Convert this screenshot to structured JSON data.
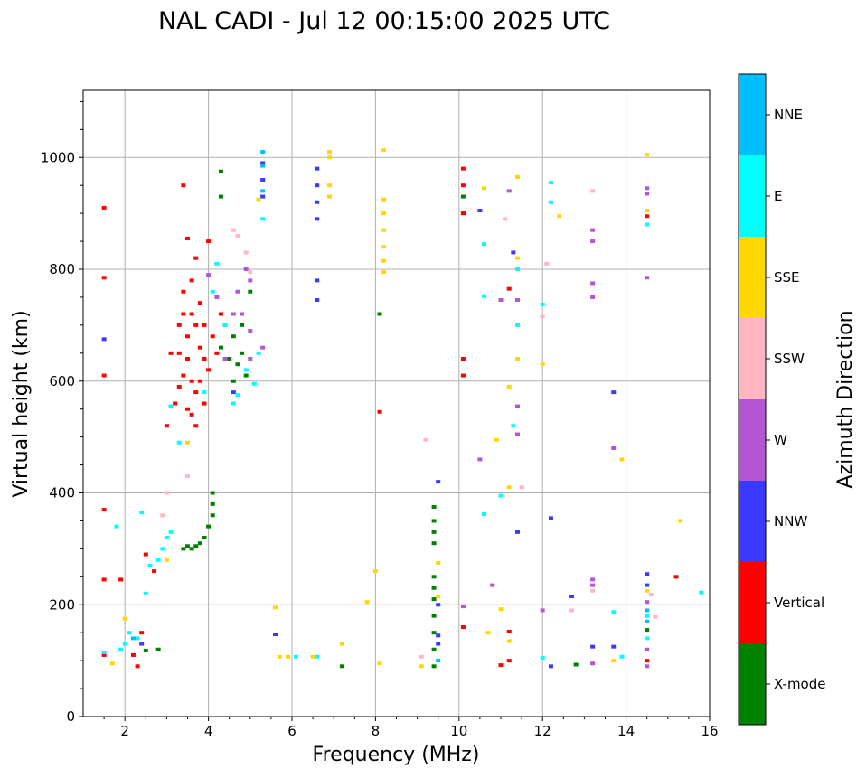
{
  "chart_data": {
    "type": "scatter",
    "title": "NAL CADI - Jul 12 00:15:00 2025 UTC",
    "xlabel": "Frequency (MHz)",
    "ylabel": "Virtual height (km)",
    "xlim": [
      1,
      16
    ],
    "ylim": [
      0,
      1120
    ],
    "xticks": [
      2,
      4,
      6,
      8,
      10,
      12,
      14,
      16
    ],
    "yticks": [
      0,
      200,
      400,
      600,
      800,
      1000
    ],
    "grid": true,
    "colorbar": {
      "label": "Azimuth Direction",
      "placement": "right",
      "categories": [
        {
          "name": "X-mode",
          "color": "#008000"
        },
        {
          "name": "Vertical",
          "color": "#ff0000"
        },
        {
          "name": "NNW",
          "color": "#3a3aff"
        },
        {
          "name": "W",
          "color": "#b355d4"
        },
        {
          "name": "SSW",
          "color": "#ffb6c1"
        },
        {
          "name": "SSE",
          "color": "#ffd700"
        },
        {
          "name": "E",
          "color": "#00ffff"
        },
        {
          "name": "NNE",
          "color": "#00bfff"
        }
      ]
    },
    "series": [
      {
        "name": "X-mode",
        "points": [
          [
            2.5,
            118
          ],
          [
            2.8,
            120
          ],
          [
            3.4,
            300
          ],
          [
            3.5,
            305
          ],
          [
            3.6,
            300
          ],
          [
            3.7,
            305
          ],
          [
            3.8,
            310
          ],
          [
            3.9,
            320
          ],
          [
            4.0,
            340
          ],
          [
            4.1,
            360
          ],
          [
            4.1,
            380
          ],
          [
            4.1,
            400
          ],
          [
            4.3,
            930
          ],
          [
            4.3,
            975
          ],
          [
            4.3,
            660
          ],
          [
            4.4,
            700
          ],
          [
            4.5,
            640
          ],
          [
            4.6,
            600
          ],
          [
            4.6,
            680
          ],
          [
            4.7,
            630
          ],
          [
            4.8,
            650
          ],
          [
            4.8,
            700
          ],
          [
            4.9,
            610
          ],
          [
            5.0,
            760
          ],
          [
            8.1,
            720
          ],
          [
            9.4,
            90
          ],
          [
            9.4,
            120
          ],
          [
            9.4,
            150
          ],
          [
            9.4,
            180
          ],
          [
            9.4,
            210
          ],
          [
            9.4,
            230
          ],
          [
            9.4,
            250
          ],
          [
            9.4,
            310
          ],
          [
            9.4,
            330
          ],
          [
            9.4,
            350
          ],
          [
            9.4,
            375
          ],
          [
            10.1,
            930
          ],
          [
            10.1,
            900
          ],
          [
            12.8,
            93
          ],
          [
            7.2,
            90
          ],
          [
            14.5,
            155
          ]
        ]
      },
      {
        "name": "Vertical",
        "points": [
          [
            1.5,
            910
          ],
          [
            1.5,
            785
          ],
          [
            1.5,
            610
          ],
          [
            1.5,
            370
          ],
          [
            1.5,
            245
          ],
          [
            1.5,
            110
          ],
          [
            1.9,
            245
          ],
          [
            2.2,
            110
          ],
          [
            2.3,
            90
          ],
          [
            2.4,
            150
          ],
          [
            2.5,
            290
          ],
          [
            2.7,
            260
          ],
          [
            3.0,
            520
          ],
          [
            3.1,
            650
          ],
          [
            3.2,
            560
          ],
          [
            3.3,
            590
          ],
          [
            3.3,
            650
          ],
          [
            3.3,
            700
          ],
          [
            3.4,
            610
          ],
          [
            3.4,
            720
          ],
          [
            3.4,
            760
          ],
          [
            3.4,
            950
          ],
          [
            3.5,
            550
          ],
          [
            3.5,
            640
          ],
          [
            3.5,
            680
          ],
          [
            3.5,
            855
          ],
          [
            3.6,
            540
          ],
          [
            3.6,
            600
          ],
          [
            3.6,
            720
          ],
          [
            3.6,
            780
          ],
          [
            3.7,
            520
          ],
          [
            3.7,
            580
          ],
          [
            3.7,
            700
          ],
          [
            3.7,
            820
          ],
          [
            3.8,
            600
          ],
          [
            3.8,
            660
          ],
          [
            3.8,
            740
          ],
          [
            3.9,
            560
          ],
          [
            3.9,
            640
          ],
          [
            3.9,
            700
          ],
          [
            4.0,
            620
          ],
          [
            4.0,
            850
          ],
          [
            4.1,
            680
          ],
          [
            4.2,
            650
          ],
          [
            4.3,
            720
          ],
          [
            8.1,
            545
          ],
          [
            10.1,
            980
          ],
          [
            10.1,
            950
          ],
          [
            10.1,
            900
          ],
          [
            10.1,
            640
          ],
          [
            10.1,
            610
          ],
          [
            10.1,
            160
          ],
          [
            11.0,
            92
          ],
          [
            11.2,
            152
          ],
          [
            11.2,
            100
          ],
          [
            11.2,
            765
          ],
          [
            14.5,
            895
          ],
          [
            14.5,
            100
          ],
          [
            15.2,
            250
          ]
        ]
      },
      {
        "name": "NNW",
        "points": [
          [
            1.5,
            675
          ],
          [
            2.4,
            130
          ],
          [
            4.6,
            580
          ],
          [
            5.3,
            930
          ],
          [
            5.3,
            960
          ],
          [
            5.3,
            990
          ],
          [
            5.6,
            147
          ],
          [
            6.6,
            890
          ],
          [
            6.6,
            920
          ],
          [
            6.6,
            950
          ],
          [
            6.6,
            980
          ],
          [
            6.6,
            745
          ],
          [
            6.6,
            780
          ],
          [
            9.5,
            420
          ],
          [
            9.5,
            200
          ],
          [
            9.5,
            145
          ],
          [
            9.5,
            130
          ],
          [
            10.5,
            905
          ],
          [
            11.4,
            330
          ],
          [
            11.3,
            830
          ],
          [
            12.2,
            90
          ],
          [
            12.2,
            355
          ],
          [
            12.7,
            215
          ],
          [
            13.2,
            125
          ],
          [
            13.7,
            125
          ],
          [
            13.7,
            580
          ],
          [
            14.5,
            255
          ],
          [
            14.5,
            235
          ]
        ]
      },
      {
        "name": "W",
        "points": [
          [
            4.0,
            790
          ],
          [
            4.2,
            750
          ],
          [
            4.4,
            640
          ],
          [
            4.6,
            720
          ],
          [
            4.7,
            760
          ],
          [
            4.8,
            720
          ],
          [
            4.9,
            800
          ],
          [
            5.0,
            780
          ],
          [
            5.0,
            690
          ],
          [
            5.0,
            640
          ],
          [
            5.3,
            660
          ],
          [
            10.5,
            460
          ],
          [
            10.8,
            235
          ],
          [
            10.1,
            197
          ],
          [
            11.0,
            745
          ],
          [
            11.2,
            940
          ],
          [
            11.4,
            505
          ],
          [
            11.4,
            555
          ],
          [
            11.4,
            745
          ],
          [
            12.0,
            190
          ],
          [
            13.2,
            870
          ],
          [
            13.2,
            850
          ],
          [
            13.2,
            775
          ],
          [
            13.2,
            750
          ],
          [
            13.2,
            235
          ],
          [
            13.2,
            245
          ],
          [
            13.2,
            95
          ],
          [
            13.7,
            480
          ],
          [
            14.5,
            945
          ],
          [
            14.5,
            935
          ],
          [
            14.5,
            785
          ],
          [
            14.5,
            205
          ],
          [
            14.5,
            120
          ],
          [
            14.5,
            90
          ]
        ]
      },
      {
        "name": "SSW",
        "points": [
          [
            2.9,
            360
          ],
          [
            3.0,
            400
          ],
          [
            3.5,
            430
          ],
          [
            4.6,
            870
          ],
          [
            4.7,
            860
          ],
          [
            4.9,
            830
          ],
          [
            5.0,
            795
          ],
          [
            9.2,
            495
          ],
          [
            9.1,
            107
          ],
          [
            11.1,
            890
          ],
          [
            11.5,
            410
          ],
          [
            12.0,
            715
          ],
          [
            12.1,
            810
          ],
          [
            12.7,
            190
          ],
          [
            13.2,
            940
          ],
          [
            13.2,
            225
          ],
          [
            14.6,
            218
          ],
          [
            14.7,
            178
          ]
        ]
      },
      {
        "name": "SSE",
        "points": [
          [
            1.7,
            95
          ],
          [
            2.0,
            175
          ],
          [
            3.0,
            280
          ],
          [
            3.5,
            490
          ],
          [
            5.2,
            925
          ],
          [
            5.6,
            195
          ],
          [
            5.7,
            107
          ],
          [
            5.9,
            107
          ],
          [
            6.5,
            107
          ],
          [
            6.9,
            1000
          ],
          [
            6.9,
            1010
          ],
          [
            6.9,
            950
          ],
          [
            6.9,
            930
          ],
          [
            7.2,
            130
          ],
          [
            7.8,
            205
          ],
          [
            8.0,
            260
          ],
          [
            8.1,
            95
          ],
          [
            8.2,
            1013
          ],
          [
            8.2,
            925
          ],
          [
            8.2,
            900
          ],
          [
            8.2,
            870
          ],
          [
            8.2,
            840
          ],
          [
            8.2,
            815
          ],
          [
            8.2,
            795
          ],
          [
            9.1,
            90
          ],
          [
            9.5,
            275
          ],
          [
            9.5,
            215
          ],
          [
            10.6,
            945
          ],
          [
            10.7,
            150
          ],
          [
            10.9,
            495
          ],
          [
            11.0,
            192
          ],
          [
            11.2,
            410
          ],
          [
            11.2,
            590
          ],
          [
            11.2,
            135
          ],
          [
            11.4,
            965
          ],
          [
            11.4,
            820
          ],
          [
            11.4,
            640
          ],
          [
            12.0,
            630
          ],
          [
            12.4,
            895
          ],
          [
            13.7,
            100
          ],
          [
            13.9,
            460
          ],
          [
            14.5,
            1005
          ],
          [
            14.5,
            905
          ],
          [
            14.5,
            225
          ],
          [
            14.5,
            170
          ],
          [
            15.3,
            350
          ]
        ]
      },
      {
        "name": "E",
        "points": [
          [
            1.5,
            115
          ],
          [
            1.8,
            340
          ],
          [
            1.9,
            120
          ],
          [
            2.0,
            130
          ],
          [
            2.1,
            150
          ],
          [
            2.3,
            140
          ],
          [
            2.4,
            365
          ],
          [
            2.5,
            220
          ],
          [
            2.6,
            270
          ],
          [
            2.8,
            280
          ],
          [
            2.9,
            300
          ],
          [
            3.0,
            320
          ],
          [
            3.1,
            330
          ],
          [
            3.1,
            555
          ],
          [
            3.3,
            490
          ],
          [
            3.9,
            580
          ],
          [
            4.1,
            760
          ],
          [
            4.2,
            810
          ],
          [
            4.4,
            700
          ],
          [
            4.6,
            560
          ],
          [
            4.7,
            575
          ],
          [
            4.9,
            620
          ],
          [
            5.1,
            595
          ],
          [
            5.2,
            650
          ],
          [
            5.3,
            890
          ],
          [
            6.1,
            107
          ],
          [
            6.6,
            107
          ],
          [
            10.6,
            845
          ],
          [
            10.6,
            752
          ],
          [
            10.6,
            362
          ],
          [
            11.0,
            395
          ],
          [
            11.3,
            520
          ],
          [
            11.4,
            800
          ],
          [
            11.4,
            700
          ],
          [
            12.0,
            737
          ],
          [
            12.0,
            105
          ],
          [
            12.2,
            920
          ],
          [
            12.2,
            955
          ],
          [
            13.7,
            187
          ],
          [
            13.9,
            107
          ],
          [
            14.5,
            880
          ],
          [
            14.5,
            180
          ],
          [
            14.5,
            140
          ],
          [
            15.8,
            222
          ]
        ]
      },
      {
        "name": "NNE",
        "points": [
          [
            2.2,
            140
          ],
          [
            5.3,
            1010
          ],
          [
            5.3,
            985
          ],
          [
            5.3,
            940
          ],
          [
            9.5,
            100
          ],
          [
            14.5,
            190
          ],
          [
            14.5,
            170
          ]
        ]
      }
    ]
  }
}
